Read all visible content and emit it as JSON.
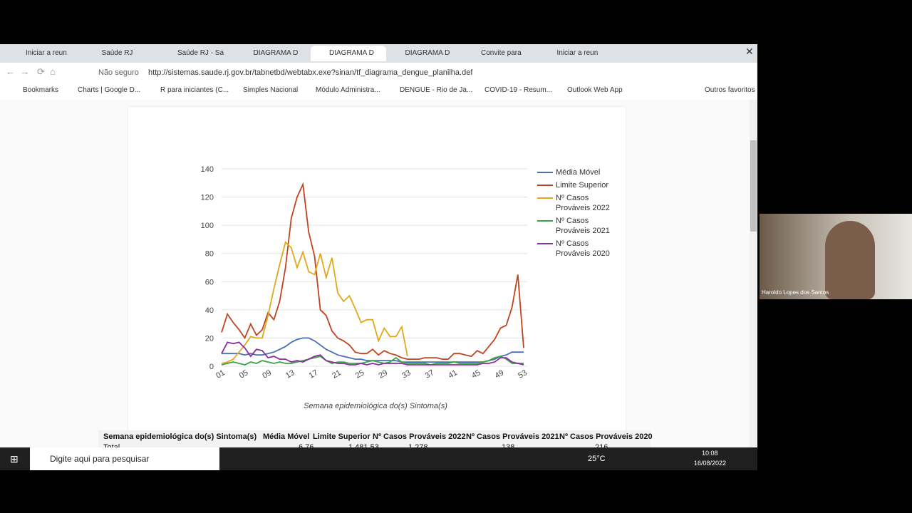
{
  "browser": {
    "tabs": [
      "Iniciar a reun",
      "Saúde RJ",
      "Saúde RJ - Sa",
      "DIAGRAMA D",
      "DIAGRAMA D",
      "DIAGRAMA D",
      "Convite para",
      "Iniciar a reun"
    ],
    "security": "Não seguro",
    "url": "http://sistemas.saude.rj.gov.br/tabnetbd/webtabx.exe?sinan/tf_diagrama_dengue_planilha.def",
    "bookmarks": [
      "Bookmarks",
      "Charts | Google D...",
      "R para iniciantes (C...",
      "Simples Nacional",
      "Módulo Administra...",
      "DENGUE - Rio de Ja...",
      "COVID-19 - Resum...",
      "Outlook Web App"
    ],
    "other_bookmarks": "Outros favoritos"
  },
  "chart_data": {
    "type": "line",
    "xlabel": "Semana epidemiológica do(s) Sintoma(s)",
    "categories": [
      "01",
      null,
      null,
      null,
      "05",
      null,
      null,
      null,
      "09",
      null,
      null,
      null,
      "13",
      null,
      null,
      null,
      "17",
      null,
      null,
      null,
      "21",
      null,
      null,
      null,
      "25",
      null,
      null,
      null,
      "29",
      null,
      null,
      null,
      "33",
      null,
      null,
      null,
      "37",
      null,
      null,
      null,
      "41",
      null,
      null,
      null,
      "45",
      null,
      null,
      null,
      "49",
      null,
      null,
      null,
      "53"
    ],
    "ylim": [
      0,
      140
    ],
    "yticks": [
      0,
      20,
      40,
      60,
      80,
      100,
      120,
      140
    ],
    "grid": true,
    "series": [
      {
        "name": "Média Móvel",
        "color": "#4a6fb5",
        "values": [
          9,
          9,
          9,
          9,
          8,
          9,
          8,
          8,
          9,
          10,
          12,
          14,
          17,
          19,
          20,
          20,
          18,
          15,
          12,
          10,
          8,
          7,
          6,
          5,
          5,
          4,
          4,
          4,
          4,
          4,
          4,
          3,
          3,
          3,
          3,
          3,
          3,
          3,
          3,
          3,
          3,
          3,
          3,
          3,
          3,
          3,
          4,
          5,
          7,
          8,
          10,
          10,
          10
        ]
      },
      {
        "name": "Limite Superior",
        "color": "#c0441f",
        "values": [
          24,
          37,
          31,
          26,
          20,
          30,
          22,
          26,
          38,
          33,
          46,
          70,
          105,
          120,
          129,
          95,
          78,
          40,
          36,
          25,
          20,
          18,
          15,
          10,
          9,
          9,
          12,
          8,
          11,
          9,
          8,
          6,
          5,
          5,
          5,
          6,
          6,
          6,
          5,
          5,
          9,
          9,
          8,
          7,
          11,
          9,
          14,
          19,
          27,
          29,
          42,
          65,
          13
        ]
      },
      {
        "name": "Nº Casos Prováveis 2022",
        "color": "#e0a81c",
        "values": [
          2,
          3,
          5,
          10,
          15,
          21,
          20,
          20,
          36,
          55,
          72,
          88,
          84,
          70,
          81,
          67,
          65,
          80,
          63,
          77,
          52,
          46,
          50,
          41,
          31,
          33,
          33,
          18,
          27,
          21,
          21,
          28,
          7,
          null,
          null,
          null,
          null,
          null,
          null,
          null,
          null,
          null,
          null,
          null,
          null,
          null,
          null,
          null,
          null,
          null,
          null,
          null,
          null
        ]
      },
      {
        "name": "Nº Casos Prováveis 2021",
        "color": "#3aa545",
        "values": [
          1,
          2,
          3,
          2,
          1,
          3,
          2,
          4,
          3,
          2,
          3,
          2,
          2,
          3,
          4,
          5,
          6,
          7,
          4,
          2,
          3,
          3,
          2,
          2,
          2,
          3,
          4,
          3,
          2,
          3,
          6,
          3,
          2,
          2,
          2,
          2,
          1,
          2,
          2,
          2,
          3,
          2,
          2,
          2,
          2,
          3,
          4,
          6,
          7,
          5,
          2,
          2,
          2
        ]
      },
      {
        "name": "Nº Casos Prováveis 2020",
        "color": "#8b2f9e",
        "values": [
          9,
          17,
          16,
          17,
          13,
          7,
          12,
          11,
          6,
          7,
          5,
          5,
          3,
          4,
          3,
          5,
          7,
          8,
          4,
          3,
          2,
          2,
          1,
          1,
          2,
          1,
          2,
          1,
          2,
          2,
          2,
          2,
          1,
          1,
          1,
          1,
          1,
          1,
          1,
          1,
          1,
          1,
          1,
          1,
          1,
          2,
          2,
          3,
          6,
          6,
          3,
          2,
          1
        ]
      }
    ]
  },
  "table": {
    "header": [
      "Semana epidemiológica do(s) Sintoma(s)",
      "Média Móvel",
      "Limite Superior",
      "Nº Casos Prováveis 2022",
      "Nº Casos Prováveis 2021",
      "Nº Casos Prováveis 2020"
    ],
    "rows": [
      [
        "Total",
        "6,76",
        "1.481,53",
        "1.278",
        "138",
        "216"
      ]
    ]
  },
  "taskbar": {
    "search": "Digite aqui para pesquisar",
    "weather": "25°C",
    "time": "10:08",
    "date": "16/08/2022"
  },
  "video": {
    "participant": "Haroldo Lopes dos Santos"
  }
}
